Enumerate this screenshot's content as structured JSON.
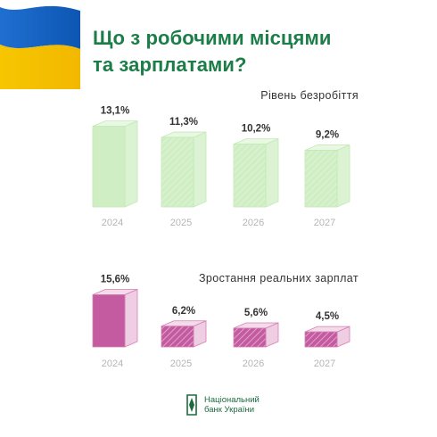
{
  "header": {
    "title_line1": "Що з робочими місцями",
    "title_line2": "та зарплатами?"
  },
  "colors": {
    "title": "#1d7d48",
    "flag_blue": "#1565c0",
    "flag_yellow": "#f5c400",
    "unemployment_fill": "#cfeec4",
    "wages_fill": "#c45ba0"
  },
  "icons": {
    "flag": "ukraine-flag-icon",
    "logo": "nbu-logo-icon"
  },
  "chart_data": [
    {
      "type": "bar",
      "title": "Рівень безробіття",
      "categories": [
        "2024",
        "2025",
        "2026",
        "2027"
      ],
      "values": [
        13.1,
        11.3,
        10.2,
        9.2
      ],
      "labels": [
        "13,1%",
        "11,3%",
        "10,2%",
        "9,2%"
      ],
      "ylim": [
        0,
        14.5
      ]
    },
    {
      "type": "bar",
      "title": "Зростання реальних зарплат",
      "categories": [
        "2024",
        "2025",
        "2026",
        "2027"
      ],
      "values": [
        15.6,
        6.2,
        5.6,
        4.5
      ],
      "labels": [
        "15,6%",
        "6,2%",
        "5,6%",
        "4,5%"
      ],
      "ylim": [
        0,
        16
      ]
    }
  ],
  "footer": {
    "logo_line1": "Національний",
    "logo_line2": "банк України"
  }
}
